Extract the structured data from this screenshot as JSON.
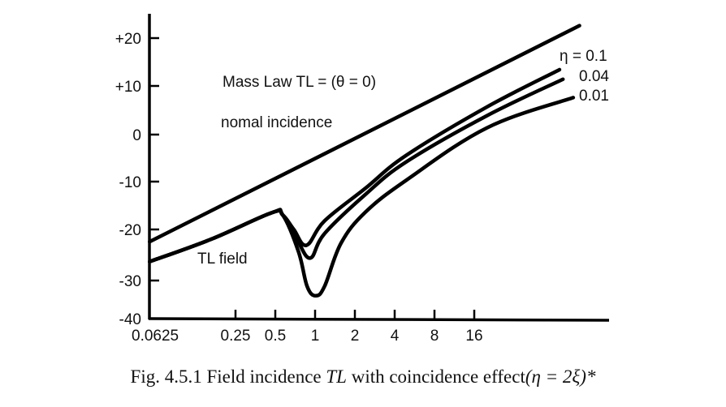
{
  "chart_data": {
    "type": "line",
    "title": "",
    "xlabel": "",
    "ylabel": "",
    "xscale": "log2",
    "xlim": [
      0.056,
      100
    ],
    "ylim": [
      -40,
      22
    ],
    "grid": false,
    "x_ticks": [
      {
        "value": 0.0625,
        "label": "0.0625"
      },
      {
        "value": 0.25,
        "label": "0.25"
      },
      {
        "value": 0.5,
        "label": "0.5"
      },
      {
        "value": 1,
        "label": "1"
      },
      {
        "value": 2,
        "label": "2"
      },
      {
        "value": 4,
        "label": "4"
      },
      {
        "value": 8,
        "label": "8"
      },
      {
        "value": 16,
        "label": "16"
      }
    ],
    "y_ticks": [
      {
        "value": 20,
        "label": "+20"
      },
      {
        "value": 10,
        "label": "+10"
      },
      {
        "value": 0,
        "label": "0"
      },
      {
        "value": -10,
        "label": "-10"
      },
      {
        "value": -20,
        "label": "-20"
      },
      {
        "value": -30,
        "label": "-30"
      },
      {
        "value": -40,
        "label": "-40"
      }
    ],
    "series": [
      {
        "name": "Mass Law TL (normal incidence)",
        "x": [
          0.056,
          100
        ],
        "y": [
          -22.4,
          22.6
        ]
      },
      {
        "name": "eta=0.1",
        "x": [
          0.056,
          0.164,
          0.47,
          0.57,
          0.69,
          0.86,
          1.18,
          2.4,
          4.9,
          20,
          70.6
        ],
        "y": [
          -26.3,
          -21.9,
          -16.5,
          -17.0,
          -20.0,
          -23.1,
          -18.2,
          -11.4,
          -4.4,
          5.7,
          13.4
        ]
      },
      {
        "name": "eta=0.04",
        "x": [
          0.056,
          0.164,
          0.47,
          0.57,
          0.73,
          0.92,
          1.18,
          2.4,
          4.9,
          20,
          75
        ],
        "y": [
          -26.3,
          -21.9,
          -16.5,
          -17.0,
          -22.0,
          -25.6,
          -20.8,
          -12.7,
          -5.8,
          3.9,
          11.4
        ]
      },
      {
        "name": "eta=0.01",
        "x": [
          0.056,
          0.164,
          0.47,
          0.57,
          0.75,
          0.87,
          1.01,
          1.18,
          1.57,
          2.4,
          4.9,
          20,
          89.7
        ],
        "y": [
          -26.3,
          -21.9,
          -16.5,
          -17.0,
          -24.4,
          -31.5,
          -34.0,
          -31.5,
          -22.7,
          -16.4,
          -9.7,
          1.4,
          7.6
        ]
      }
    ],
    "annotations": {
      "mass_law": "Mass Law TL = (θ = 0)",
      "normal": "nomal incidence",
      "tl_field": "TL field",
      "eta_01": "η = 0.1",
      "eta_004": "0.04",
      "eta_001": "0.01"
    }
  },
  "caption": {
    "prefix": "Fig. 4.5.1   Field incidence ",
    "italic_tl": "TL",
    "middle": " with coincidence effect",
    "formula": "(η = 2ξ)*"
  }
}
